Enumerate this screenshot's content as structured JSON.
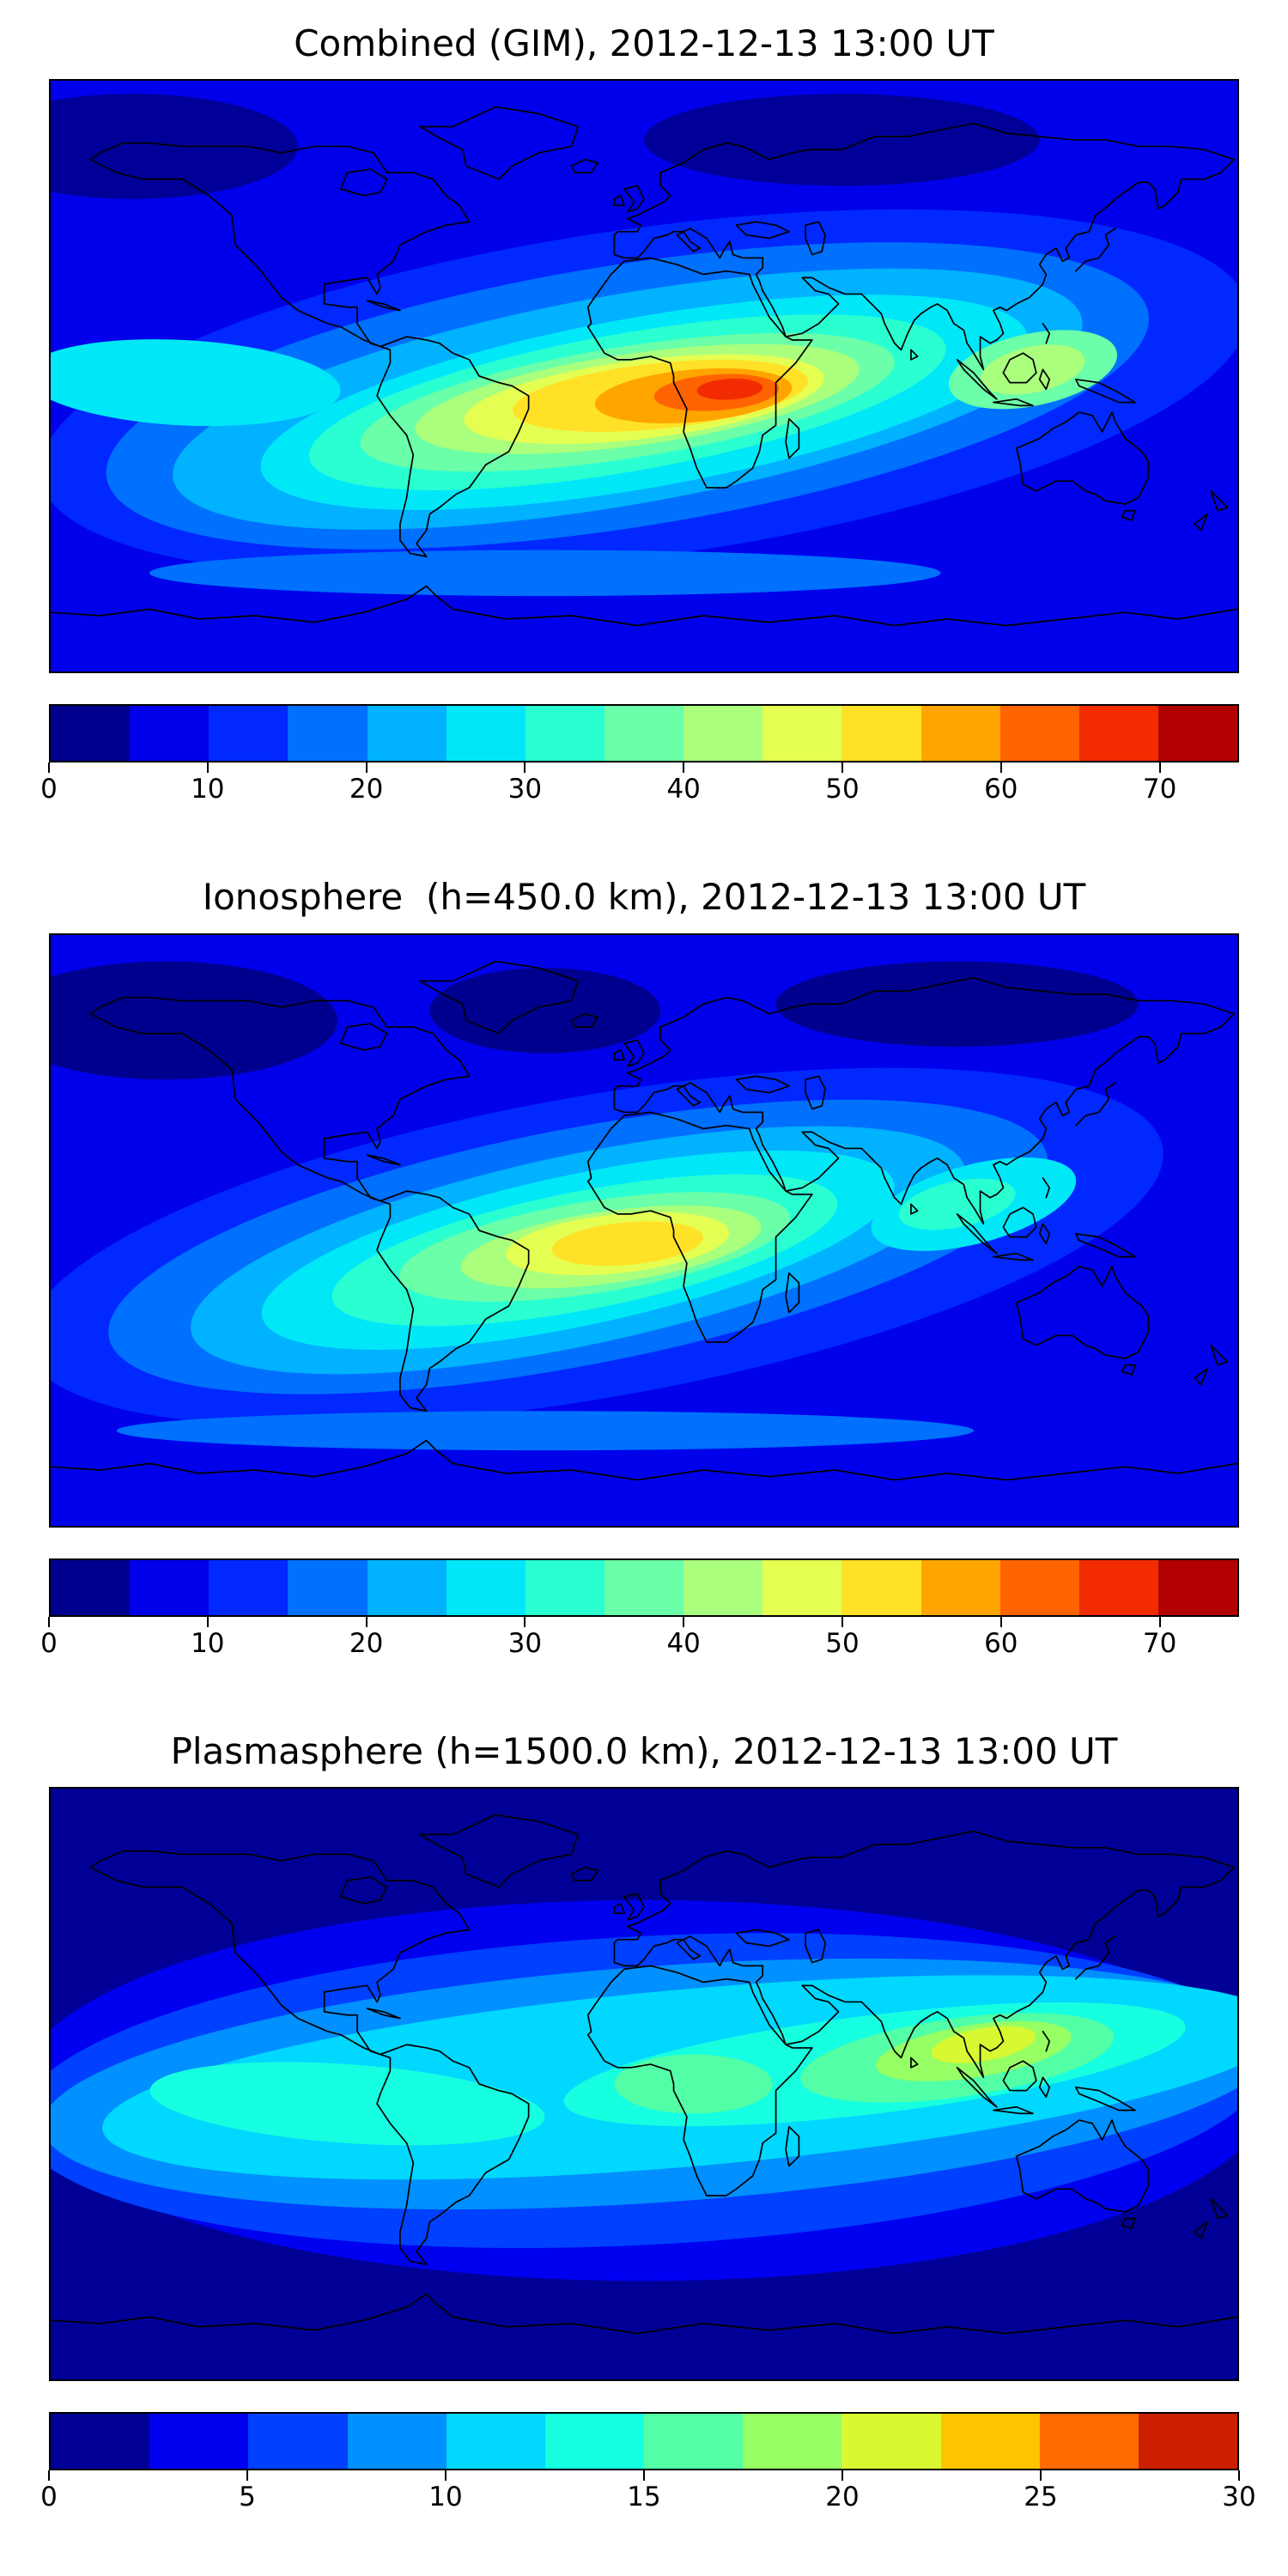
{
  "page": {
    "background": "#ffffff"
  },
  "chart_data": [
    {
      "type": "heatmap",
      "title": "Combined (GIM), 2012-12-13 13:00 UT",
      "projection": "equirectangular world map, lon -180..180, lat -90..90",
      "legend_position": "horizontal colorbar below map",
      "colorbar": {
        "min": 0,
        "max": 75,
        "level_step": 5,
        "ticks": [
          0,
          10,
          20,
          30,
          40,
          50,
          60,
          70
        ],
        "colors": [
          "#00008f",
          "#0000ea",
          "#0028ff",
          "#0070ff",
          "#00b2ff",
          "#00e8f8",
          "#2affd2",
          "#6affa8",
          "#aaff7d",
          "#e4ff52",
          "#ffe227",
          "#ffa500",
          "#ff6400",
          "#f22c00",
          "#b20000"
        ]
      },
      "peak_estimate": {
        "value": 72,
        "lon": 26,
        "lat": -4,
        "region": "equatorial Africa"
      },
      "low_estimate": {
        "value": 5,
        "region": "high northern latitudes"
      },
      "map": {
        "base_color": "#0000ea",
        "blobs": [
          {
            "lon": 0,
            "lat": -5,
            "rx": 185,
            "ry": 50,
            "rot": -8,
            "color": "#0028ff"
          },
          {
            "lon": -5,
            "lat": -6,
            "rx": 160,
            "ry": 40,
            "rot": -9,
            "color": "#0070ff"
          },
          {
            "lon": -5,
            "lat": -7,
            "rx": 140,
            "ry": 32,
            "rot": -10,
            "color": "#00b2ff"
          },
          {
            "lon": -140,
            "lat": -2,
            "rx": 48,
            "ry": 13,
            "rot": 3,
            "color": "#00e8f8"
          },
          {
            "lon": 0,
            "lat": -8,
            "rx": 118,
            "ry": 26,
            "rot": -10,
            "color": "#00e8f8"
          },
          {
            "lon": -5,
            "lat": -8,
            "rx": 98,
            "ry": 21,
            "rot": -10,
            "color": "#2affd2"
          },
          {
            "lon": -5,
            "lat": -8,
            "rx": 82,
            "ry": 17,
            "rot": -9,
            "color": "#6affa8"
          },
          {
            "lon": -2,
            "lat": -7,
            "rx": 68,
            "ry": 14,
            "rot": -8,
            "color": "#aaff7d"
          },
          {
            "lon": 0,
            "lat": -7,
            "rx": 55,
            "ry": 12,
            "rot": -7,
            "color": "#e4ff52"
          },
          {
            "lon": 5,
            "lat": -6,
            "rx": 45,
            "ry": 10,
            "rot": -6,
            "color": "#ffe227"
          },
          {
            "lon": 15,
            "lat": -6,
            "rx": 30,
            "ry": 8,
            "rot": -5,
            "color": "#ffa500"
          },
          {
            "lon": 22,
            "lat": -5,
            "rx": 19,
            "ry": 5.5,
            "rot": -4,
            "color": "#ff6400"
          },
          {
            "lon": 26,
            "lat": -4,
            "rx": 10,
            "ry": 3.2,
            "rot": -3,
            "color": "#f22c00"
          },
          {
            "lon": 118,
            "lat": 2,
            "rx": 26,
            "ry": 11,
            "rot": -12,
            "color": "#6affa8"
          },
          {
            "lon": 118,
            "lat": 2,
            "rx": 16,
            "ry": 7,
            "rot": -12,
            "color": "#aaff7d"
          },
          {
            "lon": -30,
            "lat": -60,
            "rx": 120,
            "ry": 7,
            "rot": 0,
            "color": "#0070ff"
          },
          {
            "lon": -155,
            "lat": 70,
            "rx": 50,
            "ry": 16,
            "rot": 0,
            "color": "#000098"
          },
          {
            "lon": 60,
            "lat": 72,
            "rx": 60,
            "ry": 14,
            "rot": 0,
            "color": "#000098"
          }
        ]
      }
    },
    {
      "type": "heatmap",
      "title": "Ionosphere  (h=450.0 km), 2012-12-13 13:00 UT",
      "projection": "equirectangular world map, lon -180..180, lat -90..90",
      "legend_position": "horizontal colorbar below map",
      "colorbar": {
        "min": 0,
        "max": 75,
        "level_step": 5,
        "ticks": [
          0,
          10,
          20,
          30,
          40,
          50,
          60,
          70
        ],
        "colors": [
          "#00008f",
          "#0000ea",
          "#0028ff",
          "#0070ff",
          "#00b2ff",
          "#00e8f8",
          "#2affd2",
          "#6affa8",
          "#aaff7d",
          "#e4ff52",
          "#ffe227",
          "#ffa500",
          "#ff6400",
          "#f22c00",
          "#b20000"
        ]
      },
      "peak_estimate": {
        "value": 52,
        "lon": -5,
        "lat": -4,
        "region": "Atlantic / western Africa"
      },
      "low_estimate": {
        "value": 3,
        "region": "high-latitude North America and Siberia"
      },
      "map": {
        "base_color": "#0000ea",
        "blobs": [
          {
            "lon": -15,
            "lat": -5,
            "rx": 175,
            "ry": 46,
            "rot": -10,
            "color": "#0028ff"
          },
          {
            "lon": -20,
            "lat": -5,
            "rx": 145,
            "ry": 36,
            "rot": -11,
            "color": "#0070ff"
          },
          {
            "lon": -20,
            "lat": -6,
            "rx": 120,
            "ry": 29,
            "rot": -12,
            "color": "#00b2ff"
          },
          {
            "lon": 100,
            "lat": 8,
            "rx": 32,
            "ry": 12,
            "rot": -15,
            "color": "#00e8f8"
          },
          {
            "lon": -20,
            "lat": -6,
            "rx": 98,
            "ry": 23,
            "rot": -12,
            "color": "#00e8f8"
          },
          {
            "lon": 95,
            "lat": 8,
            "rx": 18,
            "ry": 7,
            "rot": -12,
            "color": "#2affd2"
          },
          {
            "lon": -18,
            "lat": -6,
            "rx": 78,
            "ry": 18,
            "rot": -11,
            "color": "#2affd2"
          },
          {
            "lon": -15,
            "lat": -5,
            "rx": 60,
            "ry": 14,
            "rot": -9,
            "color": "#6affa8"
          },
          {
            "lon": -10,
            "lat": -5,
            "rx": 46,
            "ry": 11,
            "rot": -8,
            "color": "#aaff7d"
          },
          {
            "lon": -8,
            "lat": -4,
            "rx": 34,
            "ry": 9,
            "rot": -6,
            "color": "#e4ff52"
          },
          {
            "lon": -5,
            "lat": -4,
            "rx": 23,
            "ry": 6.5,
            "rot": -5,
            "color": "#ffe227"
          },
          {
            "lon": 130,
            "lat": -27,
            "rx": 24,
            "ry": 11,
            "rot": 0,
            "color": "#0000ea"
          },
          {
            "lon": -30,
            "lat": -61,
            "rx": 130,
            "ry": 6,
            "rot": 0,
            "color": "#0070ff"
          },
          {
            "lon": -145,
            "lat": 64,
            "rx": 52,
            "ry": 18,
            "rot": 0,
            "color": "#00008f"
          },
          {
            "lon": -30,
            "lat": 67,
            "rx": 35,
            "ry": 13,
            "rot": 0,
            "color": "#00008f"
          },
          {
            "lon": 95,
            "lat": 69,
            "rx": 55,
            "ry": 13,
            "rot": 0,
            "color": "#00008f"
          }
        ]
      }
    },
    {
      "type": "heatmap",
      "title": "Plasmasphere (h=1500.0 km), 2012-12-13 13:00 UT",
      "projection": "equirectangular world map, lon -180..180, lat -90..90",
      "legend_position": "horizontal colorbar below map",
      "colorbar": {
        "min": 0,
        "max": 30,
        "level_step": 2.5,
        "ticks": [
          0,
          5,
          10,
          15,
          20,
          25,
          30
        ],
        "colors": [
          "#000096",
          "#0000f0",
          "#0040ff",
          "#0090ff",
          "#00d8ff",
          "#16ffe0",
          "#52ffa6",
          "#96ff64",
          "#d8f832",
          "#ffc400",
          "#ff6a00",
          "#cc1e00"
        ]
      },
      "peak_estimate": {
        "value": 21,
        "lon": 103,
        "lat": 12,
        "region": "South / Southeast Asia"
      },
      "low_estimate": {
        "value": 2,
        "region": "polar caps"
      },
      "map": {
        "base_color": "#000096",
        "blobs": [
          {
            "lon": 0,
            "lat": -2,
            "rx": 190,
            "ry": 58,
            "rot": 0,
            "color": "#0000f0"
          },
          {
            "lon": 0,
            "lat": -2,
            "rx": 190,
            "ry": 47,
            "rot": -3,
            "color": "#0040ff"
          },
          {
            "lon": 5,
            "lat": 0,
            "rx": 188,
            "ry": 36,
            "rot": -4,
            "color": "#0090ff"
          },
          {
            "lon": 15,
            "lat": 2,
            "rx": 180,
            "ry": 27,
            "rot": -5,
            "color": "#00d8ff"
          },
          {
            "lon": 70,
            "lat": 6,
            "rx": 95,
            "ry": 15,
            "rot": -7,
            "color": "#16ffe0"
          },
          {
            "lon": -90,
            "lat": -6,
            "rx": 60,
            "ry": 12,
            "rot": 4,
            "color": "#16ffe0"
          },
          {
            "lon": 15,
            "lat": 0,
            "rx": 24,
            "ry": 9,
            "rot": 0,
            "color": "#52ffa6"
          },
          {
            "lon": 95,
            "lat": 8,
            "rx": 48,
            "ry": 12,
            "rot": -8,
            "color": "#52ffa6"
          },
          {
            "lon": 100,
            "lat": 10,
            "rx": 30,
            "ry": 8,
            "rot": -9,
            "color": "#96ff64"
          },
          {
            "lon": 103,
            "lat": 12,
            "rx": 16,
            "ry": 5,
            "rot": -10,
            "color": "#d8f832"
          }
        ]
      }
    }
  ]
}
